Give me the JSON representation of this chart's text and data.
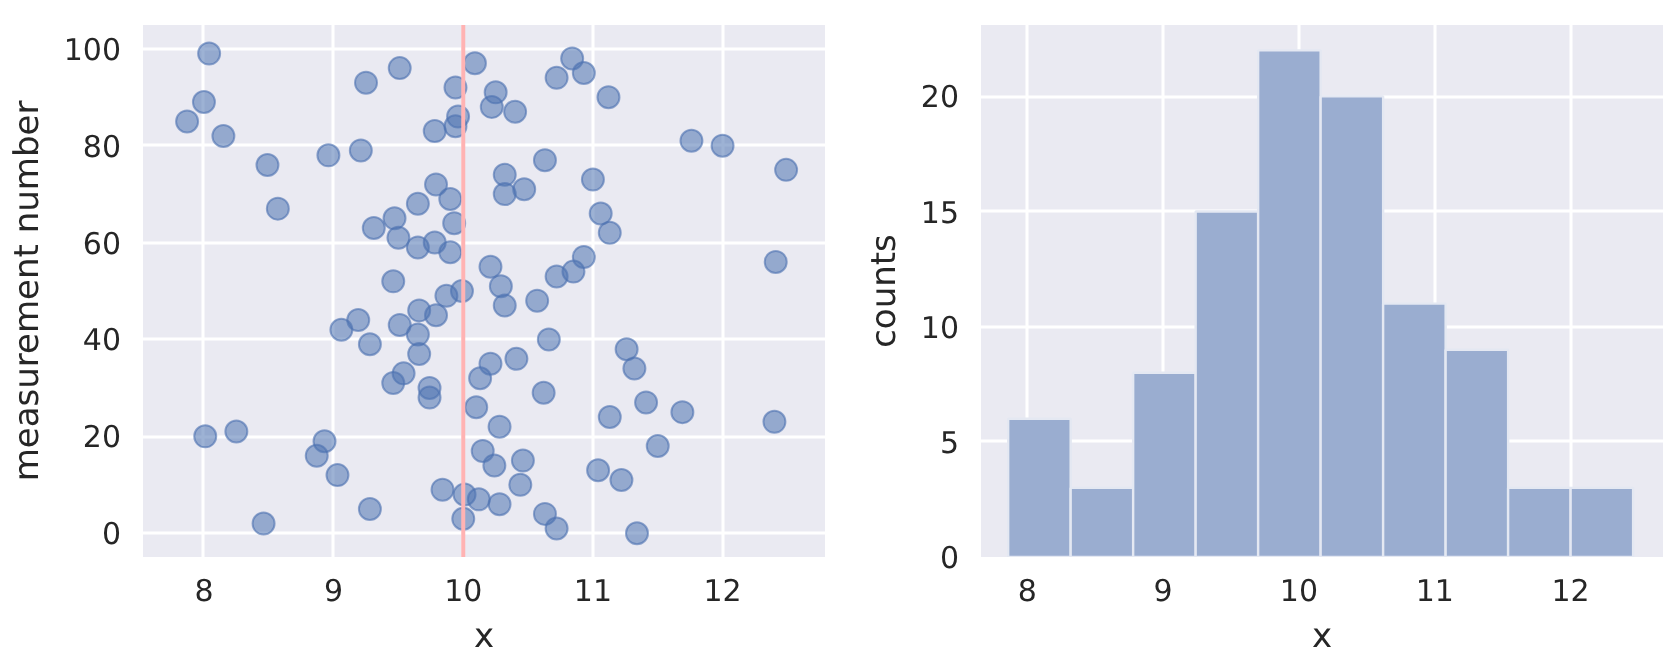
{
  "chart_data": [
    {
      "type": "scatter",
      "xlabel": "x",
      "ylabel": "measurement number",
      "xlim": [
        7.53,
        12.79
      ],
      "ylim": [
        -4.9,
        104.9
      ],
      "xticks": [
        8,
        9,
        10,
        11,
        12
      ],
      "yticks": [
        0,
        20,
        40,
        60,
        80,
        100
      ],
      "grid": true,
      "marker": "circle",
      "series": [
        {
          "color": "#4c72b0",
          "x": [
            9.94,
            10.09,
            10.25,
            10.22,
            10.4,
            9.96,
            9.94,
            10.72,
            10.84,
            10.93,
            11.12,
            11.76,
            12.0,
            12.49,
            10.63,
            10.32,
            10.32,
            10.47,
            11.0,
            11.06,
            11.13,
            9.9,
            9.93,
            9.9,
            10.21,
            10.29,
            10.32,
            10.57,
            10.72,
            10.85,
            10.93,
            12.41,
            9.99,
            9.87,
            10.66,
            11.26,
            8.04,
            7.87,
            8.0,
            8.15,
            8.49,
            8.57,
            8.96,
            9.21,
            9.25,
            9.51,
            9.78,
            9.79,
            9.65,
            9.47,
            9.31,
            9.5,
            9.65,
            9.78,
            9.46,
            9.66,
            9.79,
            9.19,
            9.06,
            9.51,
            9.65,
            9.28,
            9.66,
            9.54,
            9.46,
            9.74,
            9.74,
            8.01,
            8.25,
            8.93,
            8.87,
            9.03,
            9.84,
            10.01,
            9.28,
            10.0,
            8.46,
            11.32,
            10.41,
            10.21,
            10.13,
            10.62,
            10.1,
            10.28,
            11.13,
            11.41,
            11.69,
            12.4,
            11.5,
            10.15,
            10.24,
            10.46,
            10.44,
            11.04,
            11.22,
            10.12,
            10.28,
            10.63,
            10.72,
            11.34
          ],
          "values": [
            92,
            97,
            91,
            88,
            87,
            86,
            84,
            94,
            98,
            95,
            90,
            81,
            80,
            75,
            77,
            74,
            70,
            71,
            73,
            66,
            62,
            69,
            64,
            58,
            55,
            51,
            47,
            48,
            53,
            54,
            57,
            56,
            50,
            49,
            40,
            38,
            99,
            85,
            89,
            82,
            76,
            67,
            78,
            79,
            93,
            96,
            83,
            72,
            68,
            65,
            63,
            61,
            59,
            60,
            52,
            46,
            45,
            44,
            42,
            43,
            41,
            39,
            37,
            33,
            31,
            30,
            28,
            20,
            21,
            19,
            16,
            12,
            9,
            8,
            5,
            3,
            2,
            34,
            36,
            35,
            32,
            29,
            26,
            22,
            24,
            27,
            25,
            23,
            18,
            17,
            14,
            15,
            10,
            13,
            11,
            7,
            6,
            4,
            1,
            0
          ]
        }
      ],
      "ref_lines": [
        {
          "axis": "x",
          "value": 10,
          "color": "#ffb3b3"
        }
      ]
    },
    {
      "type": "histogram",
      "xlabel": "x",
      "ylabel": "counts",
      "xlim": [
        7.66,
        12.68
      ],
      "ylim": [
        0,
        23.1
      ],
      "xticks": [
        8,
        9,
        10,
        11,
        12
      ],
      "yticks": [
        0,
        5,
        10,
        15,
        20
      ],
      "grid": true,
      "color": "#9aadd0",
      "bins": [
        7.86,
        8.32,
        8.78,
        9.24,
        9.7,
        10.16,
        10.62,
        11.08,
        11.54,
        12.0,
        12.46
      ],
      "values": [
        6,
        3,
        8,
        15,
        22,
        20,
        11,
        9,
        3,
        3
      ]
    }
  ]
}
